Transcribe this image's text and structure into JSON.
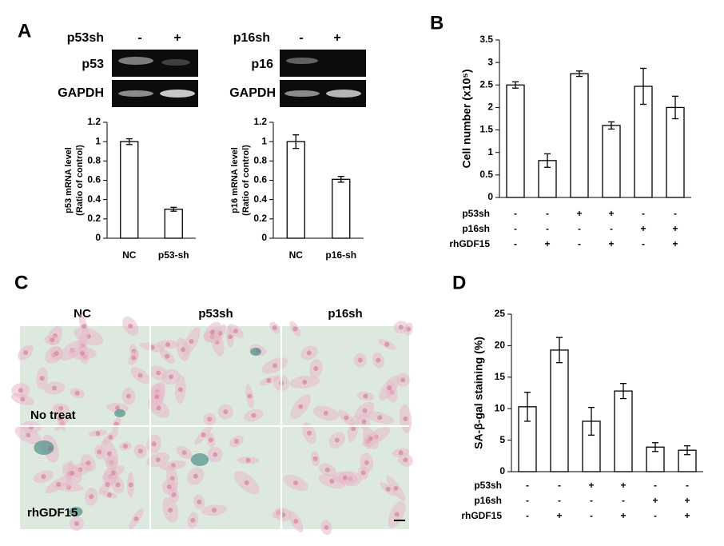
{
  "panels": [
    "A",
    "B",
    "C",
    "D"
  ],
  "gels": [
    {
      "treatment": "p53sh",
      "conditions": [
        "-",
        "+"
      ],
      "rows": [
        "p53",
        "GAPDH"
      ]
    },
    {
      "treatment": "p16sh",
      "conditions": [
        "-",
        "+"
      ],
      "rows": [
        "p16",
        "GAPDH"
      ]
    }
  ],
  "micrographs": {
    "columns": [
      "NC",
      "p53sh",
      "p16sh"
    ],
    "rows": [
      "No treat",
      "rhGDF15"
    ]
  },
  "chart_data": [
    {
      "type": "bar",
      "ylabel": [
        "p53 mRNA level",
        "(Ratio of control)"
      ],
      "categories": [
        "NC",
        "p53-sh"
      ],
      "values": [
        1.0,
        0.3
      ],
      "errors": [
        0.03,
        0.02
      ],
      "color": "#ffffff",
      "ylim": [
        0,
        1.2
      ],
      "yticks": [
        0,
        0.2,
        0.4,
        0.6,
        0.8,
        1,
        1.2
      ]
    },
    {
      "type": "bar",
      "ylabel": [
        "p16 mRNA level",
        "(Ratio of control)"
      ],
      "categories": [
        "NC",
        "p16-sh"
      ],
      "values": [
        1.0,
        0.61
      ],
      "errors": [
        0.07,
        0.03
      ],
      "color": "#ffffff",
      "ylim": [
        0,
        1.2
      ],
      "yticks": [
        0,
        0.2,
        0.4,
        0.6,
        0.8,
        1,
        1.2
      ]
    },
    {
      "type": "bar",
      "ylabel": [
        "Cell number (x10⁵)"
      ],
      "conditions": [
        {
          "name": "p53sh",
          "values": [
            "-",
            "-",
            "+",
            "+",
            "-",
            "-"
          ]
        },
        {
          "name": "p16sh",
          "values": [
            "-",
            "-",
            "-",
            "-",
            "+",
            "+"
          ]
        },
        {
          "name": "rhGDF15",
          "values": [
            "-",
            "+",
            "-",
            "+",
            "-",
            "+"
          ]
        }
      ],
      "values": [
        2.5,
        0.82,
        2.75,
        1.6,
        2.47,
        2.0
      ],
      "errors": [
        0.07,
        0.15,
        0.06,
        0.08,
        0.4,
        0.25
      ],
      "color": "#ffffff",
      "ylim": [
        0,
        3.5
      ],
      "yticks": [
        0,
        0.5,
        1,
        1.5,
        2,
        2.5,
        3,
        3.5
      ]
    },
    {
      "type": "bar",
      "ylabel": [
        "SA-β-gal staining (%)"
      ],
      "conditions": [
        {
          "name": "p53sh",
          "values": [
            "-",
            "-",
            "+",
            "+",
            "-",
            "-"
          ]
        },
        {
          "name": "p16sh",
          "values": [
            "-",
            "-",
            "-",
            "-",
            "+",
            "+"
          ]
        },
        {
          "name": "rhGDF15",
          "values": [
            "-",
            "+",
            "-",
            "+",
            "-",
            "+"
          ]
        }
      ],
      "values": [
        10.3,
        19.3,
        8.0,
        12.8,
        3.9,
        3.4
      ],
      "errors": [
        2.3,
        2.0,
        2.2,
        1.2,
        0.7,
        0.7
      ],
      "color": "#ffffff",
      "ylim": [
        0,
        25
      ],
      "yticks": [
        0,
        5,
        10,
        15,
        20,
        25
      ]
    }
  ]
}
